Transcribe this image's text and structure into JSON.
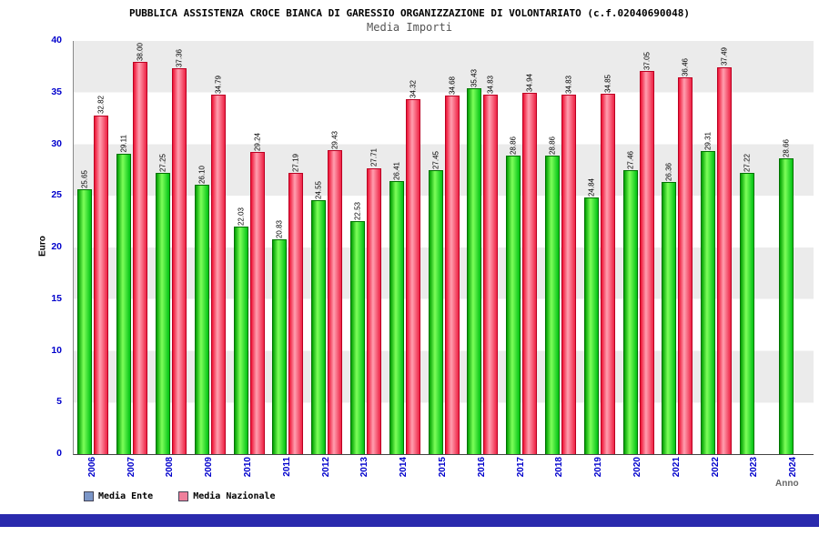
{
  "header": {
    "title": "PUBBLICA ASSISTENZA CROCE BIANCA DI GARESSIO ORGANIZZAZIONE DI VOLONTARIATO (c.f.02040690048)",
    "subtitle": "Media Importi"
  },
  "chart_data": {
    "type": "bar",
    "title": "Media Importi",
    "xlabel": "Anno",
    "ylabel": "Euro",
    "ylim": [
      0,
      40
    ],
    "yticks": [
      0,
      5,
      10,
      15,
      20,
      25,
      30,
      35,
      40
    ],
    "grid": "alternating-horizontal-bands",
    "legend_position": "bottom-left",
    "value_label_format": "2-decimals-rotated-vertical",
    "categories": [
      "2006",
      "2007",
      "2008",
      "2009",
      "2010",
      "2011",
      "2012",
      "2013",
      "2014",
      "2015",
      "2016",
      "2017",
      "2018",
      "2019",
      "2020",
      "2021",
      "2022",
      "2023",
      "2024"
    ],
    "series": [
      {
        "name": "Media Ente",
        "legend_color": "#7b96c8",
        "bar_edge": "#007200",
        "bar_gradient": [
          "#00a000",
          "#7dff5a",
          "#00c214"
        ],
        "values": [
          25.65,
          29.11,
          27.25,
          26.1,
          22.03,
          20.83,
          24.55,
          22.53,
          26.41,
          27.45,
          35.43,
          28.86,
          28.86,
          24.84,
          27.46,
          26.36,
          29.31,
          27.22,
          28.66
        ]
      },
      {
        "name": "Media Nazionale",
        "legend_color": "#ee7f9b",
        "bar_edge": "#bb0022",
        "bar_gradient": [
          "#ee1133",
          "#ff9fb0",
          "#ee2244"
        ],
        "values": [
          32.82,
          38.0,
          37.36,
          34.79,
          29.24,
          27.19,
          29.43,
          27.71,
          34.32,
          34.68,
          34.83,
          34.94,
          34.83,
          34.85,
          37.05,
          36.46,
          37.49,
          null,
          null
        ]
      }
    ]
  },
  "colors": {
    "axis_label": "#0000cc",
    "value_label": "#000000",
    "footer_bar": "#2a2aad",
    "band_light": "#ffffff",
    "band_dark": "#ebebeb"
  }
}
